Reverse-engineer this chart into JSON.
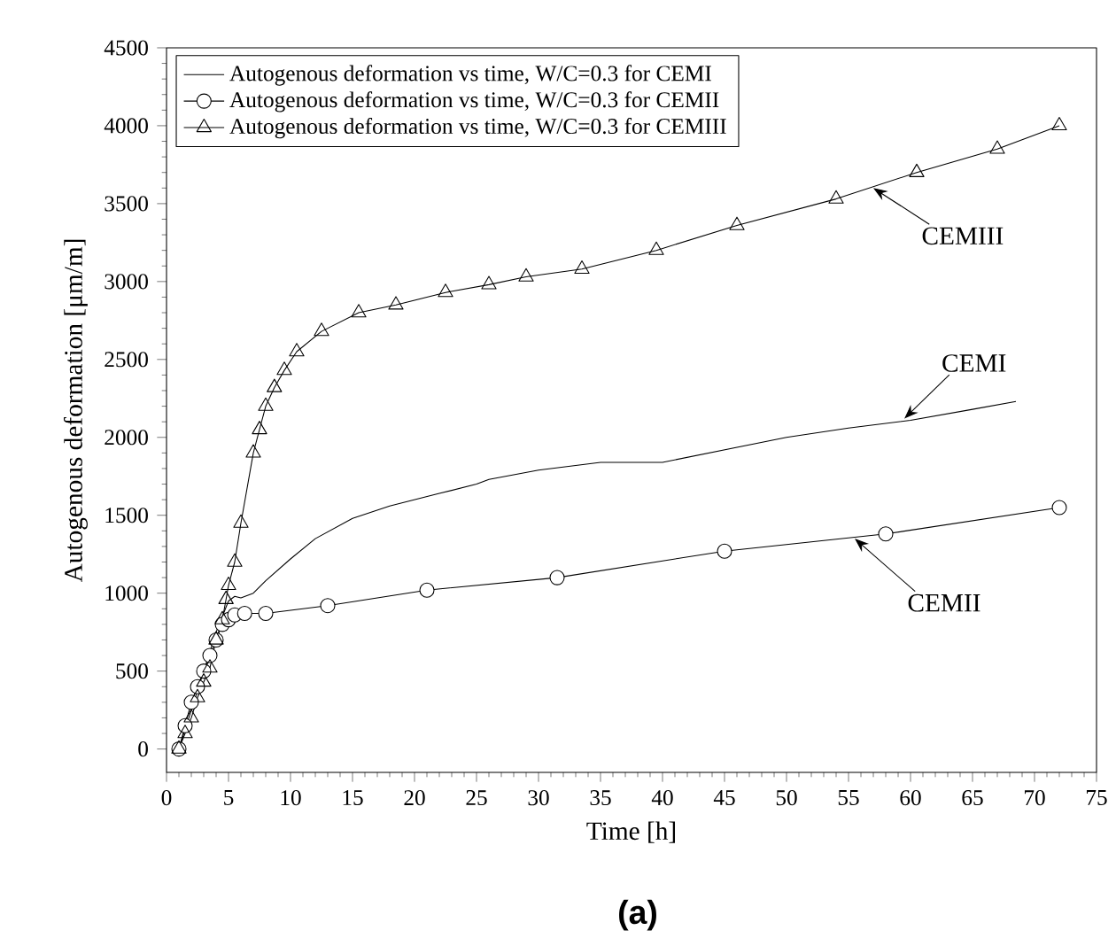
{
  "chart_data": {
    "type": "line",
    "xlabel": "Time [h]",
    "ylabel": "Autogenous deformation [μm/m]",
    "xlim": [
      0,
      75
    ],
    "ylim": [
      -150,
      4500
    ],
    "xticks": [
      0,
      5,
      10,
      15,
      20,
      25,
      30,
      35,
      40,
      45,
      50,
      55,
      60,
      65,
      70,
      75
    ],
    "yticks": [
      0,
      500,
      1000,
      1500,
      2000,
      2500,
      3000,
      3500,
      4000,
      4500
    ],
    "legend": "top left",
    "grid": false,
    "line_style": "solid",
    "series": [
      {
        "name": "Autogenous deformation vs time, W/C=0.3 for CEMI",
        "color": "#000000",
        "marker": "none",
        "x": [
          1,
          2,
          3,
          4,
          5,
          5.5,
          6,
          7,
          8,
          10,
          12,
          15,
          18,
          22,
          25,
          26,
          30,
          35,
          40,
          45,
          50,
          55,
          60,
          65,
          68.5
        ],
        "values": [
          0,
          250,
          500,
          750,
          950,
          980,
          970,
          1000,
          1080,
          1220,
          1350,
          1480,
          1560,
          1640,
          1700,
          1730,
          1790,
          1840,
          1840,
          1920,
          2000,
          2060,
          2110,
          2180,
          2230
        ]
      },
      {
        "name": "Autogenous deformation vs time, W/C=0.3 for CEMII",
        "color": "#000000",
        "marker": "circle",
        "x": [
          1,
          1.5,
          2,
          2.5,
          3,
          3.5,
          4,
          4.5,
          5,
          5.5,
          6.3,
          8,
          13,
          21,
          31.5,
          45,
          58,
          72
        ],
        "values": [
          0,
          150,
          300,
          400,
          500,
          600,
          700,
          800,
          830,
          860,
          870,
          870,
          920,
          1020,
          1100,
          1270,
          1380,
          1550
        ]
      },
      {
        "name": "Autogenous deformation vs time, W/C=0.3 for CEMIII",
        "color": "#000000",
        "marker": "triangle",
        "x": [
          1,
          1.5,
          2,
          2.5,
          3,
          3.5,
          4,
          4.5,
          4.8,
          5,
          5.5,
          6,
          7,
          7.5,
          8,
          8.7,
          9.5,
          10.5,
          12.5,
          15.5,
          18.5,
          22.5,
          26,
          29,
          33.5,
          39.5,
          46,
          54,
          60.5,
          67,
          72
        ],
        "values": [
          0,
          100,
          200,
          330,
          430,
          520,
          700,
          830,
          960,
          1050,
          1200,
          1450,
          1900,
          2050,
          2200,
          2320,
          2430,
          2550,
          2680,
          2800,
          2850,
          2930,
          2980,
          3030,
          3080,
          3200,
          3360,
          3530,
          3700,
          3850,
          4000
        ]
      }
    ],
    "annotations": [
      {
        "text": "CEMIII",
        "x": 57,
        "y": 3600
      },
      {
        "text": "CEMI",
        "x": 59.5,
        "y": 2120
      },
      {
        "text": "CEMII",
        "x": 55.5,
        "y": 1350
      },
      "(a)"
    ]
  }
}
